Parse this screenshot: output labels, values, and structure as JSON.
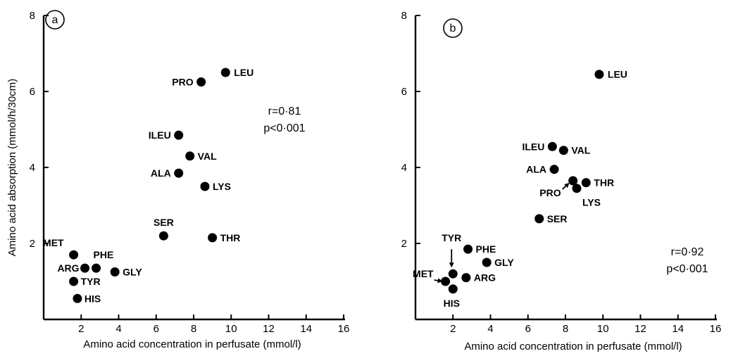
{
  "chart_data": [
    {
      "type": "scatter",
      "panel_label": "a",
      "xlabel": "Amino acid concentration in perfusate (mmol/l)",
      "ylabel": "Amino acid absorption (mmol/h/30cm)",
      "xlim": [
        0,
        16
      ],
      "ylim": [
        0,
        8
      ],
      "xticks": [
        2,
        4,
        6,
        8,
        10,
        12,
        14,
        16
      ],
      "yticks": [
        2,
        4,
        6,
        8
      ],
      "annotation": [
        "r=0·81",
        "p<0·001"
      ],
      "points": [
        {
          "label": "LEU",
          "x": 9.7,
          "y": 6.5
        },
        {
          "label": "PRO",
          "x": 8.4,
          "y": 6.25
        },
        {
          "label": "ILEU",
          "x": 7.2,
          "y": 4.85
        },
        {
          "label": "VAL",
          "x": 7.8,
          "y": 4.3
        },
        {
          "label": "ALA",
          "x": 7.2,
          "y": 3.85
        },
        {
          "label": "LYS",
          "x": 8.6,
          "y": 3.5
        },
        {
          "label": "SER",
          "x": 6.4,
          "y": 2.2
        },
        {
          "label": "THR",
          "x": 9.0,
          "y": 2.15
        },
        {
          "label": "MET",
          "x": 1.6,
          "y": 1.7
        },
        {
          "label": "ARG",
          "x": 2.2,
          "y": 1.35
        },
        {
          "label": "PHE",
          "x": 2.8,
          "y": 1.35
        },
        {
          "label": "GLY",
          "x": 3.8,
          "y": 1.25
        },
        {
          "label": "TYR",
          "x": 1.6,
          "y": 1.0
        },
        {
          "label": "HIS",
          "x": 1.8,
          "y": 0.55
        }
      ]
    },
    {
      "type": "scatter",
      "panel_label": "b",
      "xlabel": "Amino acid concentration in perfusate (mmol/l)",
      "ylabel": "",
      "xlim": [
        0,
        16
      ],
      "ylim": [
        0,
        8
      ],
      "xticks": [
        2,
        4,
        6,
        8,
        10,
        12,
        14,
        16
      ],
      "yticks": [
        2,
        4,
        6,
        8
      ],
      "annotation": [
        "r=0·92",
        "p<0·001"
      ],
      "points": [
        {
          "label": "LEU",
          "x": 9.8,
          "y": 6.45
        },
        {
          "label": "ILEU",
          "x": 7.3,
          "y": 4.55
        },
        {
          "label": "VAL",
          "x": 7.9,
          "y": 4.45
        },
        {
          "label": "ALA",
          "x": 7.4,
          "y": 3.95
        },
        {
          "label": "PRO",
          "x": 8.4,
          "y": 3.65
        },
        {
          "label": "THR",
          "x": 9.1,
          "y": 3.6
        },
        {
          "label": "LYS",
          "x": 8.6,
          "y": 3.45
        },
        {
          "label": "SER",
          "x": 6.6,
          "y": 2.65
        },
        {
          "label": "PHE",
          "x": 2.8,
          "y": 1.85
        },
        {
          "label": "GLY",
          "x": 3.8,
          "y": 1.5
        },
        {
          "label": "TYR",
          "x": 2.0,
          "y": 1.2
        },
        {
          "label": "ARG",
          "x": 2.7,
          "y": 1.1
        },
        {
          "label": "MET",
          "x": 1.6,
          "y": 1.0
        },
        {
          "label": "HIS",
          "x": 2.0,
          "y": 0.8
        }
      ]
    }
  ]
}
